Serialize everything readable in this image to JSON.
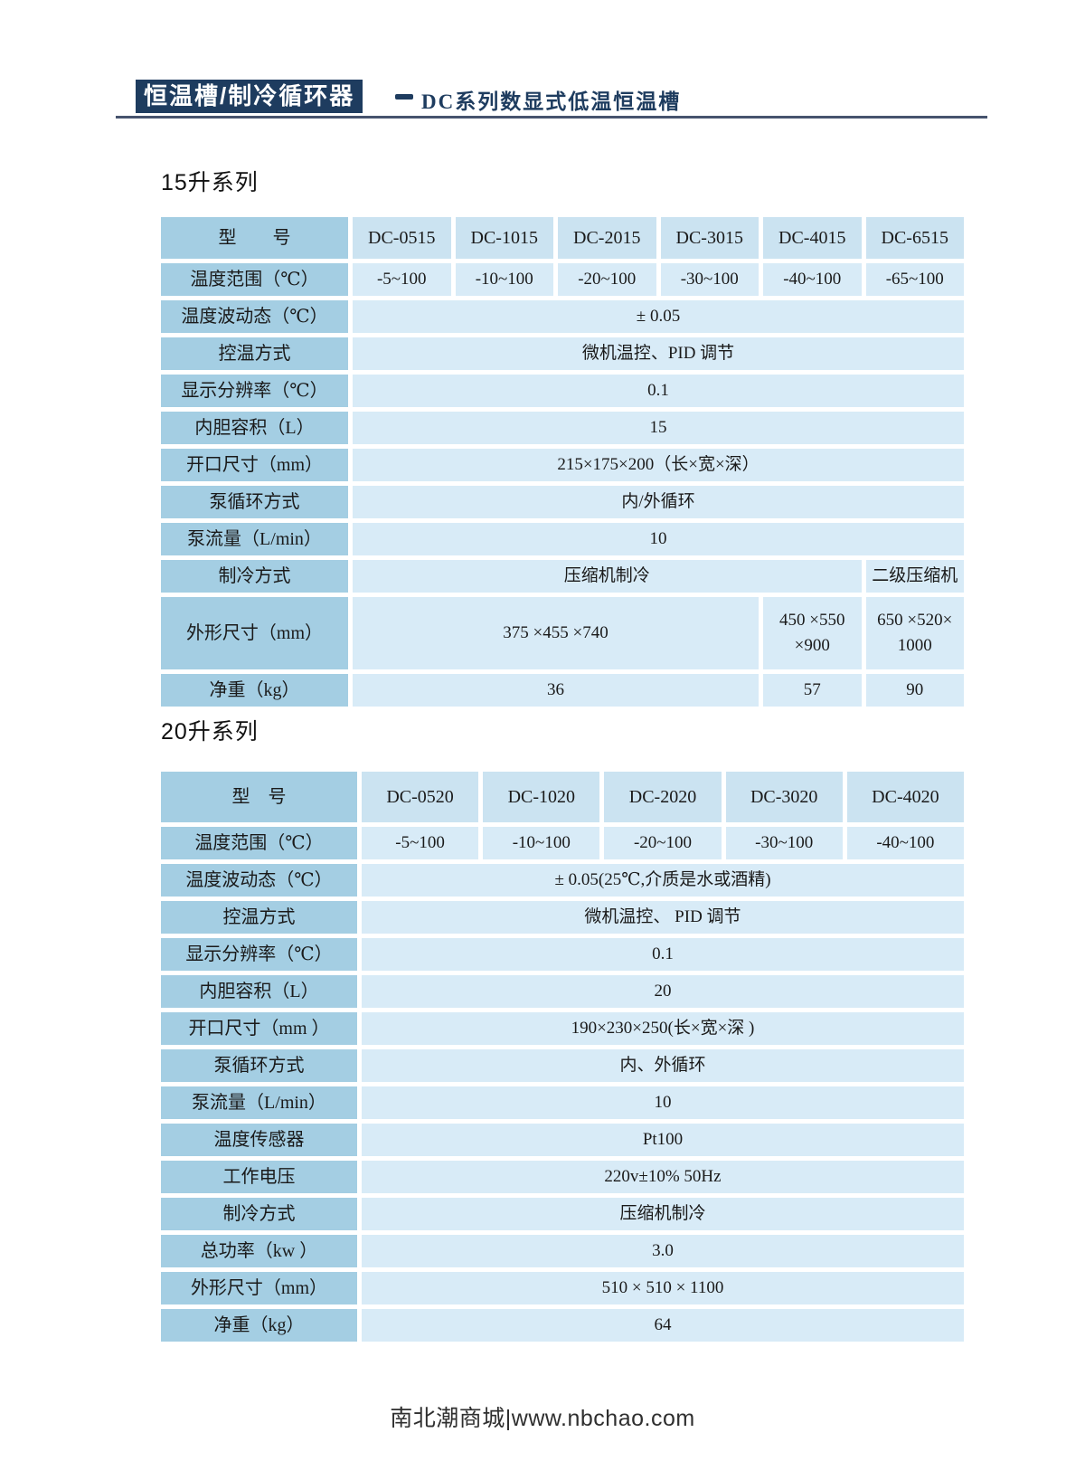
{
  "header": {
    "badge": "恒温槽/制冷循环器",
    "subtitle": "DC系列数显式低温恒温槽"
  },
  "colors": {
    "navy": "#1e3c5f",
    "rule": "#46536e",
    "label_cell": "#a4cee3",
    "model_cell": "#cbe3f1",
    "value_cell": "#d8ebf7",
    "cell_text": "#1a1a1a"
  },
  "sections": [
    {
      "title": "15升系列",
      "header_label": "型　　号",
      "models": [
        "DC-0515",
        "DC-1015",
        "DC-2015",
        "DC-3015",
        "DC-4015",
        "DC-6515"
      ],
      "rows": [
        {
          "label": "温度范围（℃）",
          "cells": [
            {
              "text": "-5~100"
            },
            {
              "text": "-10~100"
            },
            {
              "text": "-20~100"
            },
            {
              "text": "-30~100"
            },
            {
              "text": "-40~100"
            },
            {
              "text": "-65~100"
            }
          ]
        },
        {
          "label": "温度波动态（℃）",
          "cells": [
            {
              "text": "± 0.05",
              "span": 6
            }
          ]
        },
        {
          "label": "控温方式",
          "cells": [
            {
              "text": "微机温控、PID 调节",
              "span": 6
            }
          ]
        },
        {
          "label": "显示分辨率（℃）",
          "cells": [
            {
              "text": "0.1",
              "span": 6
            }
          ]
        },
        {
          "label": "内胆容积（L）",
          "cells": [
            {
              "text": "15",
              "span": 6
            }
          ]
        },
        {
          "label": "开口尺寸（mm）",
          "cells": [
            {
              "text": "215×175×200（长×宽×深）",
              "span": 6
            }
          ]
        },
        {
          "label": "泵循环方式",
          "cells": [
            {
              "text": "内/外循环",
              "span": 6
            }
          ]
        },
        {
          "label": "泵流量（L/min）",
          "cells": [
            {
              "text": "10",
              "span": 6
            }
          ]
        },
        {
          "label": "制冷方式",
          "cells": [
            {
              "text": "压缩机制冷",
              "span": 5
            },
            {
              "text": "二级压缩机",
              "span": 1
            }
          ]
        },
        {
          "label": "外形尺寸（mm）",
          "tall": true,
          "cells": [
            {
              "text": "375 ×455 ×740",
              "span": 4
            },
            {
              "text": "450 ×550 ×900",
              "span": 1
            },
            {
              "text": "650 ×520× 1000",
              "span": 1
            }
          ]
        },
        {
          "label": "净重（kg）",
          "cells": [
            {
              "text": "36",
              "span": 4
            },
            {
              "text": "57",
              "span": 1
            },
            {
              "text": "90",
              "span": 1
            }
          ]
        }
      ]
    },
    {
      "title": "20升系列",
      "header_label": "型　号",
      "models": [
        "DC-0520",
        "DC-1020",
        "DC-2020",
        "DC-3020",
        "DC-4020"
      ],
      "rows": [
        {
          "label": "温度范围（℃）",
          "cells": [
            {
              "text": "-5~100"
            },
            {
              "text": "-10~100"
            },
            {
              "text": "-20~100"
            },
            {
              "text": "-30~100"
            },
            {
              "text": "-40~100"
            }
          ]
        },
        {
          "label": "温度波动态（℃）",
          "cells": [
            {
              "text": "± 0.05(25℃,介质是水或酒精)",
              "span": 5
            }
          ]
        },
        {
          "label": "控温方式",
          "cells": [
            {
              "text": "微机温控、 PID 调节",
              "span": 5
            }
          ]
        },
        {
          "label": "显示分辨率（℃）",
          "cells": [
            {
              "text": "0.1",
              "span": 5
            }
          ]
        },
        {
          "label": "内胆容积（L）",
          "cells": [
            {
              "text": "20",
              "span": 5
            }
          ]
        },
        {
          "label": "开口尺寸（mm ）",
          "cells": [
            {
              "text": "190×230×250(长×宽×深 )",
              "span": 5
            }
          ]
        },
        {
          "label": "泵循环方式",
          "cells": [
            {
              "text": "内、外循环",
              "span": 5
            }
          ]
        },
        {
          "label": "泵流量（L/min）",
          "cells": [
            {
              "text": "10",
              "span": 5
            }
          ]
        },
        {
          "label": "温度传感器",
          "cells": [
            {
              "text": "Pt100",
              "span": 5
            }
          ]
        },
        {
          "label": "工作电压",
          "cells": [
            {
              "text": "220v±10% 50Hz",
              "span": 5
            }
          ]
        },
        {
          "label": "制冷方式",
          "cells": [
            {
              "text": "压缩机制冷",
              "span": 5
            }
          ]
        },
        {
          "label": "总功率（kw ）",
          "cells": [
            {
              "text": "3.0",
              "span": 5
            }
          ]
        },
        {
          "label": "外形尺寸（mm）",
          "cells": [
            {
              "text": "510 × 510 × 1100",
              "span": 5
            }
          ]
        },
        {
          "label": "净重（kg）",
          "cells": [
            {
              "text": "64",
              "span": 5
            }
          ]
        }
      ]
    }
  ],
  "footer": {
    "text": "南北潮商城|www.nbchao.com"
  }
}
